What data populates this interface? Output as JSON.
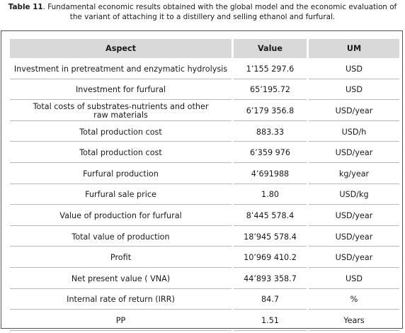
{
  "caption": {
    "label": "Table 11",
    "text": ". Fundamental economic results obtained with the global model and the economic evaluation of the variant of attaching it to a distillery and selling ethanol and furfural."
  },
  "table": {
    "headers": [
      "Aspect",
      "Value",
      "UM"
    ],
    "rows": [
      [
        "Investment in pretreatment and enzymatic hydrolysis",
        "1’155 297.6",
        "USD"
      ],
      [
        "Investment for furfural",
        "65’195.72",
        "USD"
      ],
      [
        "Total costs of substrates-nutrients and other raw materials",
        "6’179 356.8",
        "USD/year"
      ],
      [
        "Total production cost",
        "883.33",
        "USD/h"
      ],
      [
        "Total production cost",
        "6’359 976",
        "USD/year"
      ],
      [
        "Furfural production",
        "4’691988",
        "kg/year"
      ],
      [
        "Furfural sale price",
        "1.80",
        "USD/kg"
      ],
      [
        "Value of production for furfural",
        "8’445 578.4",
        "USD/year"
      ],
      [
        "Total value of production",
        "18’945 578.4",
        "USD/year"
      ],
      [
        "Profit",
        "10’969 410.2",
        "USD/year"
      ],
      [
        "Net present value ( VNA)",
        "44’893 358.7",
        "USD"
      ],
      [
        "Internal rate of return (IRR)",
        "84.7",
        "%"
      ],
      [
        "PP",
        "1.51",
        "Years"
      ]
    ]
  }
}
